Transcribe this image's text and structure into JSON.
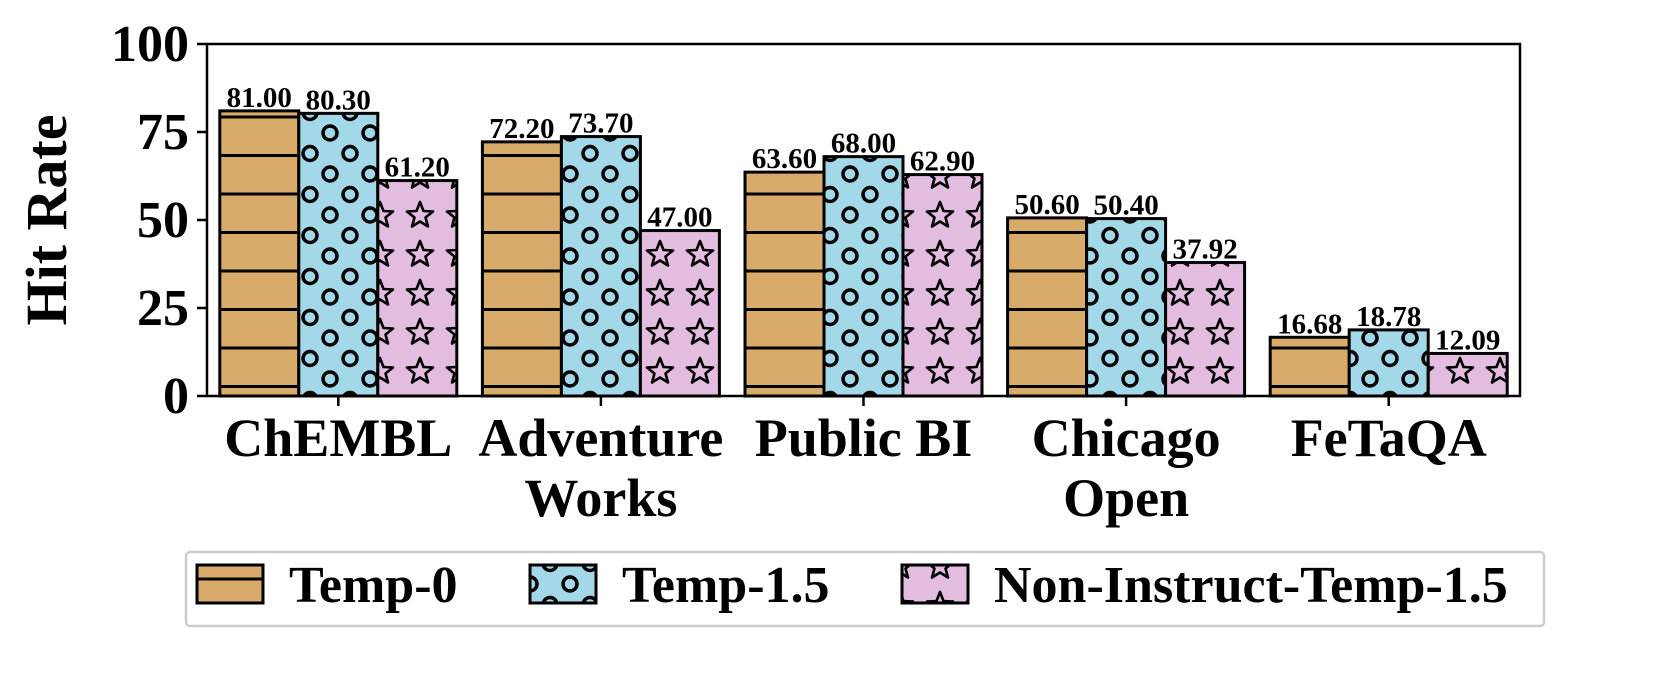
{
  "chart_data": {
    "type": "bar",
    "categories": [
      "ChEMBL",
      "Adventure Works",
      "Public BI",
      "Chicago Open",
      "FeTaQA"
    ],
    "category_lines": [
      [
        "ChEMBL"
      ],
      [
        "Adventure",
        "Works"
      ],
      [
        "Public BI"
      ],
      [
        "Chicago",
        "Open"
      ],
      [
        "FeTaQA"
      ]
    ],
    "series": [
      {
        "name": "Temp-0",
        "values": [
          81.0,
          72.2,
          63.6,
          50.6,
          16.68
        ],
        "labels": [
          "81.00",
          "72.20",
          "63.60",
          "50.60",
          "16.68"
        ],
        "color": "#d9ab6b",
        "pattern": "horizontal-lines"
      },
      {
        "name": "Temp-1.5",
        "values": [
          80.3,
          73.7,
          68.0,
          50.4,
          18.78
        ],
        "labels": [
          "80.30",
          "73.70",
          "68.00",
          "50.40",
          "18.78"
        ],
        "color": "#a3d8e8",
        "pattern": "circles"
      },
      {
        "name": "Non-Instruct-Temp-1.5",
        "values": [
          61.2,
          47.0,
          62.9,
          37.92,
          12.09
        ],
        "labels": [
          "61.20",
          "47.00",
          "62.90",
          "37.92",
          "12.09"
        ],
        "color": "#e3bde0",
        "pattern": "stars"
      }
    ],
    "title": "",
    "xlabel": "",
    "ylabel": "Hit Rate",
    "ylim": [
      0,
      100
    ],
    "yticks": [
      0,
      25,
      50,
      75,
      100
    ],
    "grid": false,
    "legend": "bottom"
  }
}
